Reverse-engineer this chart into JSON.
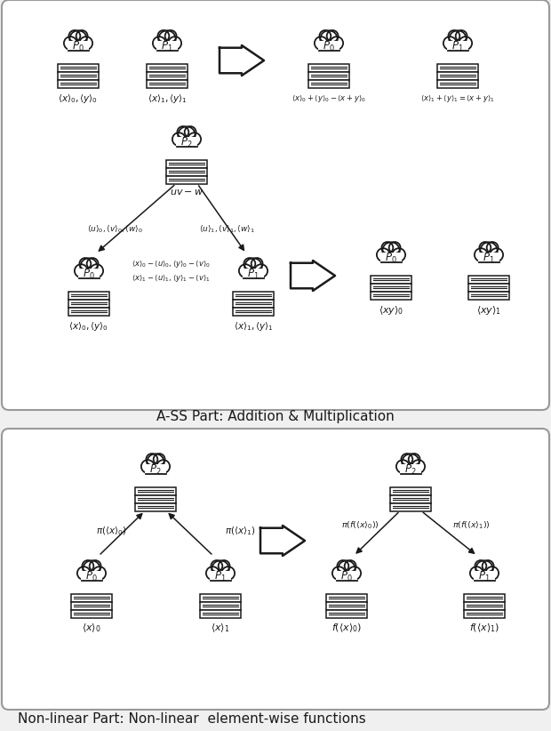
{
  "bg_color": "#f0f0f0",
  "panel_color": "#ffffff",
  "border_color": "#999999",
  "line_color": "#1a1a1a",
  "text_color": "#1a1a1a",
  "panel1_title": "A-SS Part: Addition & Multiplication",
  "panel2_title": "Non-linear Part: Non-linear  element-wise functions",
  "cloud_label_p0": "$P_0$",
  "cloud_label_p1": "$P_1$",
  "cloud_label_p2": "$P_2$",
  "lbl_p0_add": "$\\langle x\\rangle_0,\\langle y\\rangle_0$",
  "lbl_p1_add": "$\\langle x\\rangle_1,\\langle y\\rangle_1$",
  "lbl_p0_add_out": "$\\langle x\\rangle_0+\\langle y\\rangle_0-\\langle x+y\\rangle_0$",
  "lbl_p1_add_out": "$\\langle x\\rangle_1+\\langle y\\rangle_1=\\langle x+y\\rangle_1$",
  "lbl_p2_mul": "$uv-w$",
  "lbl_p0_mul_in": "$\\langle x\\rangle_0,\\langle y\\rangle_0$",
  "lbl_p1_mul_in": "$\\langle x\\rangle_1,\\langle y\\rangle_1$",
  "lbl_between_top": "$\\langle x\\rangle_0-\\langle u\\rangle_0,\\langle y\\rangle_0-\\langle v\\rangle_0$",
  "lbl_between_bot": "$\\langle x\\rangle_1-\\langle u\\rangle_1,\\langle y\\rangle_1-\\langle v\\rangle_1$",
  "lbl_p0_edge": "$\\langle u\\rangle_0,\\langle v\\rangle_0,\\langle w\\rangle_0$",
  "lbl_p1_edge": "$\\langle u\\rangle_1,\\langle v\\rangle_1,\\langle w\\rangle_1$",
  "lbl_p0_mul_out": "$\\langle xy\\rangle_0$",
  "lbl_p1_mul_out": "$\\langle xy\\rangle_1$",
  "lbl_p0_nl_in": "$\\langle x\\rangle_0$",
  "lbl_p1_nl_in": "$\\langle x\\rangle_1$",
  "lbl_nl_edge_left": "$\\pi(\\langle x\\rangle_0)$",
  "lbl_nl_edge_right": "$\\pi(\\langle x\\rangle_1)$",
  "lbl_p0_nl_out": "$f(\\langle x\\rangle_0)$",
  "lbl_p1_nl_out": "$f(\\langle x\\rangle_1)$",
  "lbl_nl_out_left": "$\\pi(f(\\langle x\\rangle_0))$",
  "lbl_nl_out_right": "$\\pi(f(\\langle x\\rangle_1))$"
}
